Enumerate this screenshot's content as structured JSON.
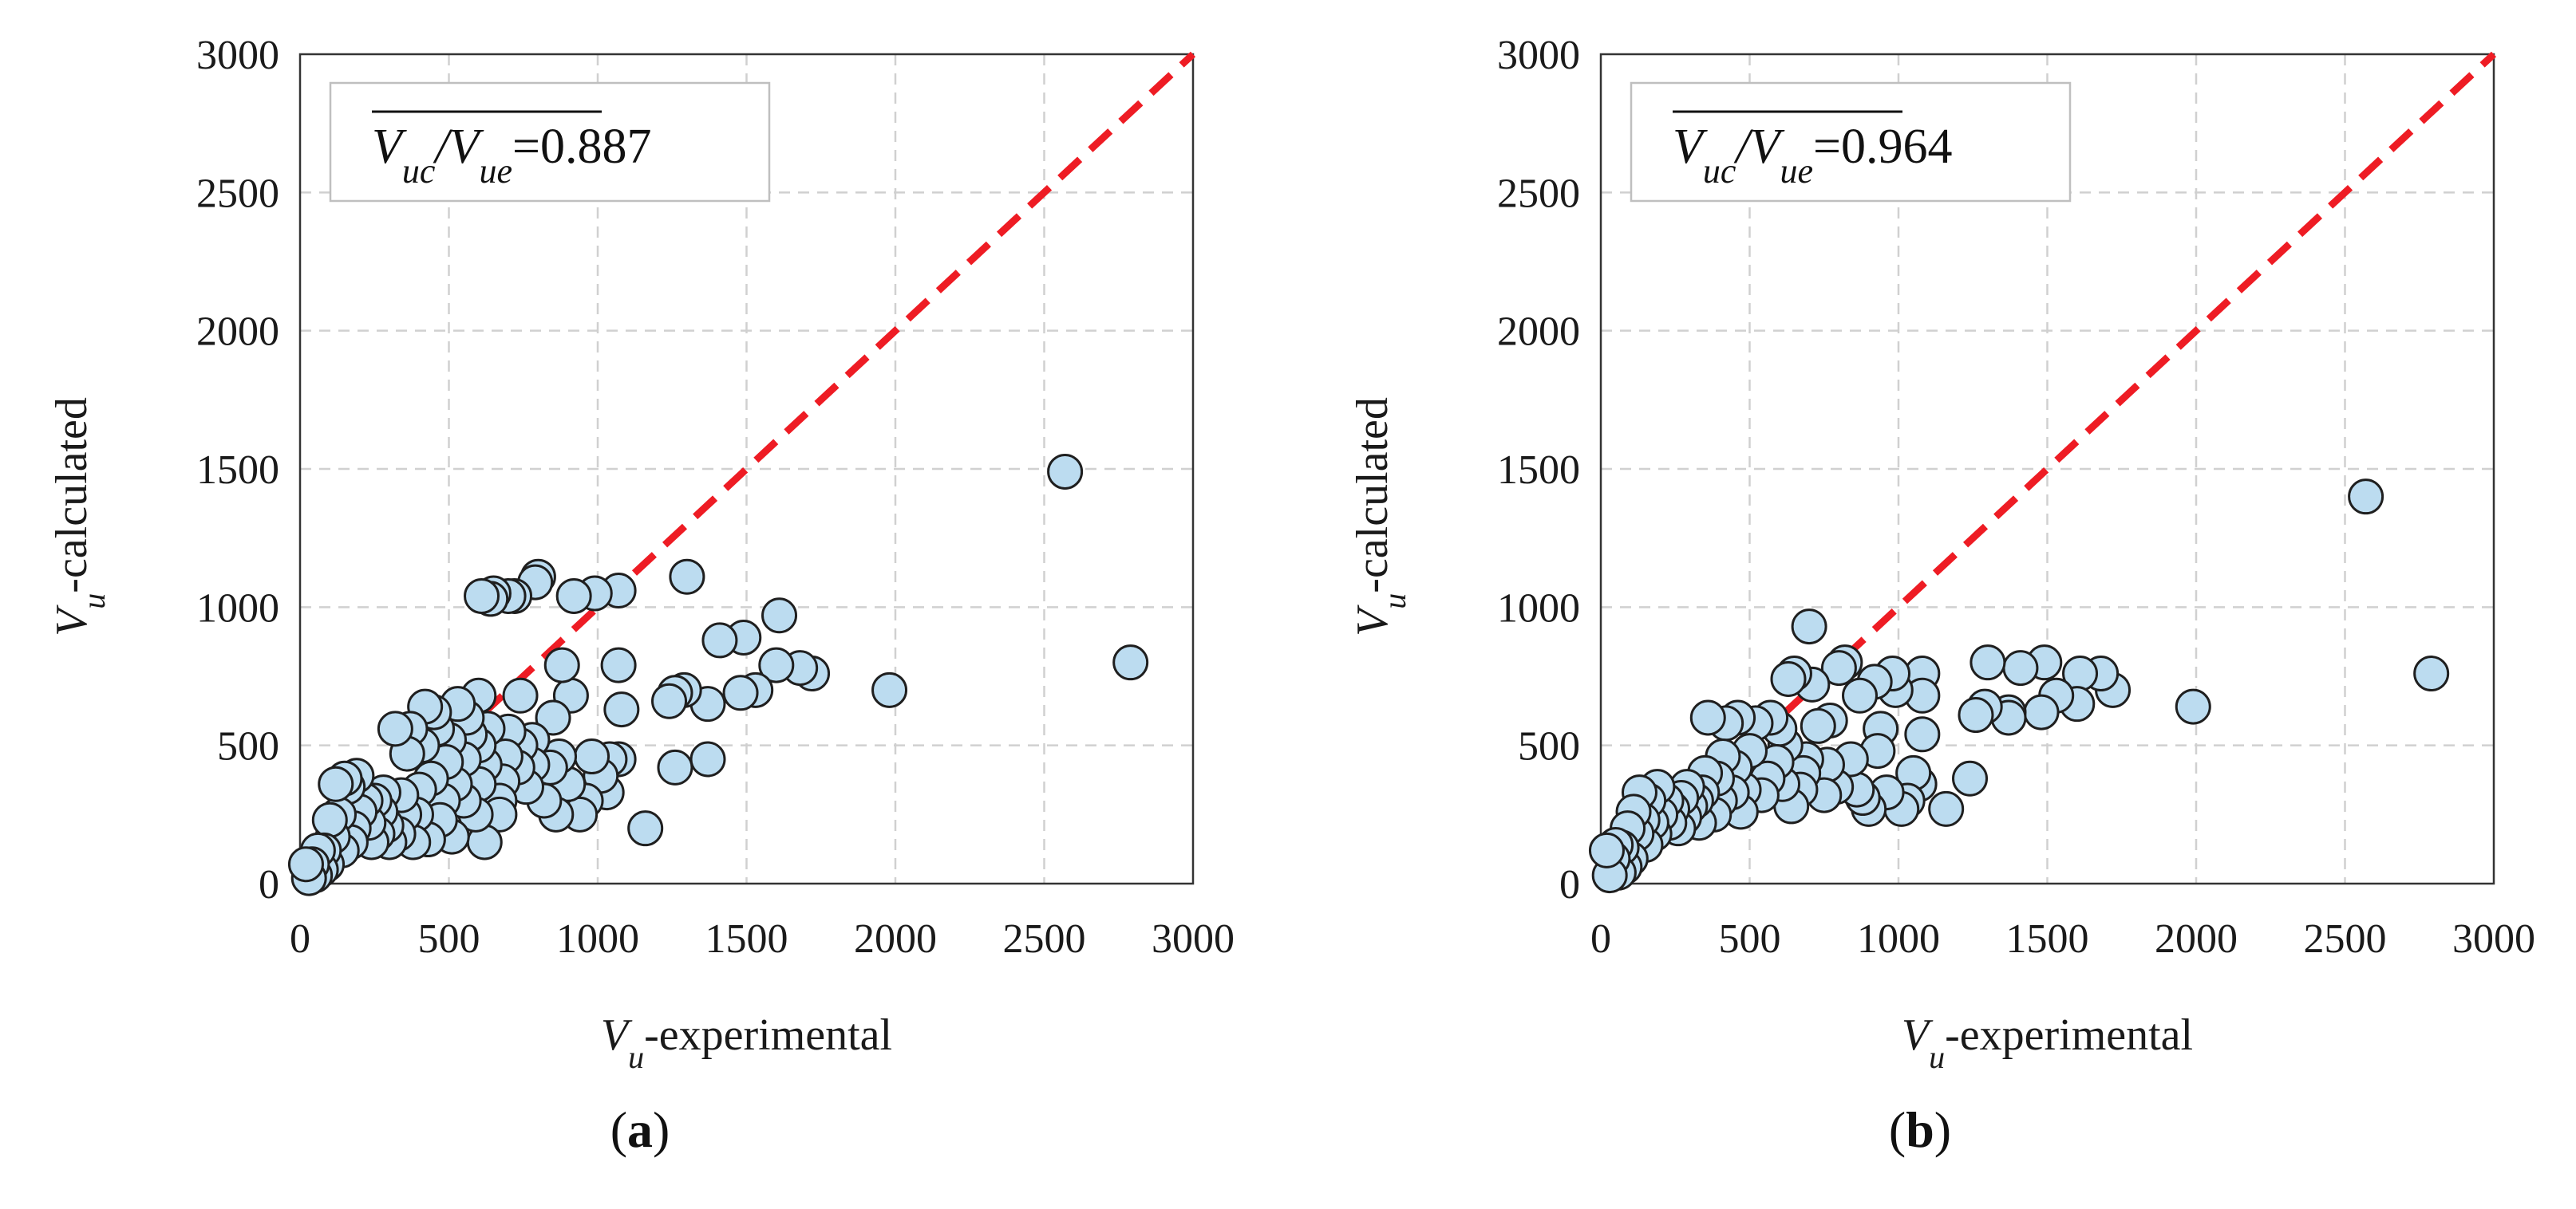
{
  "chart_data": [
    {
      "type": "scatter",
      "panel_label": "a",
      "caption_open": "(",
      "caption_close": ")",
      "legend": {
        "ratio_numerator": "V",
        "ratio_num_sub": "uc",
        "ratio_sep": "/",
        "ratio_denominator": "V",
        "ratio_den_sub": "ue",
        "ratio_value": "=0.887"
      },
      "xlabel": {
        "symbol": "V",
        "sub": "u",
        "text": "-experimental"
      },
      "ylabel": {
        "symbol": "V",
        "sub": "u",
        "text": "-calculated"
      },
      "xlim": [
        0,
        3000
      ],
      "ylim": [
        0,
        3000
      ],
      "xticks": [
        "0",
        "500",
        "1000",
        "1500",
        "2000",
        "2500",
        "3000"
      ],
      "yticks": [
        "0",
        "500",
        "1000",
        "1500",
        "2000",
        "2500",
        "3000"
      ],
      "grid": true,
      "reference_line": "y = x",
      "points": [
        [
          2570,
          1490
        ],
        [
          2790,
          800
        ],
        [
          1980,
          700
        ],
        [
          1720,
          760
        ],
        [
          1680,
          780
        ],
        [
          1610,
          970
        ],
        [
          1600,
          790
        ],
        [
          1530,
          700
        ],
        [
          1490,
          890
        ],
        [
          1480,
          690
        ],
        [
          1410,
          880
        ],
        [
          1370,
          650
        ],
        [
          1370,
          450
        ],
        [
          1300,
          1110
        ],
        [
          1290,
          700
        ],
        [
          1260,
          690
        ],
        [
          1240,
          660
        ],
        [
          1260,
          420
        ],
        [
          1160,
          200
        ],
        [
          1070,
          1060
        ],
        [
          1070,
          790
        ],
        [
          1080,
          630
        ],
        [
          1070,
          450
        ],
        [
          1040,
          450
        ],
        [
          1030,
          330
        ],
        [
          1010,
          390
        ],
        [
          990,
          1050
        ],
        [
          980,
          460
        ],
        [
          960,
          300
        ],
        [
          940,
          250
        ],
        [
          920,
          1040
        ],
        [
          910,
          680
        ],
        [
          900,
          360
        ],
        [
          880,
          790
        ],
        [
          870,
          460
        ],
        [
          860,
          250
        ],
        [
          850,
          600
        ],
        [
          840,
          420
        ],
        [
          820,
          300
        ],
        [
          800,
          1110
        ],
        [
          790,
          1090
        ],
        [
          780,
          520
        ],
        [
          780,
          430
        ],
        [
          760,
          350
        ],
        [
          740,
          680
        ],
        [
          740,
          500
        ],
        [
          730,
          420
        ],
        [
          720,
          1040
        ],
        [
          700,
          1040
        ],
        [
          700,
          550
        ],
        [
          690,
          460
        ],
        [
          680,
          370
        ],
        [
          670,
          300
        ],
        [
          670,
          250
        ],
        [
          650,
          1050
        ],
        [
          640,
          1030
        ],
        [
          630,
          560
        ],
        [
          620,
          430
        ],
        [
          620,
          150
        ],
        [
          610,
          1040
        ],
        [
          600,
          680
        ],
        [
          600,
          500
        ],
        [
          600,
          360
        ],
        [
          590,
          250
        ],
        [
          570,
          540
        ],
        [
          560,
          600
        ],
        [
          550,
          450
        ],
        [
          550,
          300
        ],
        [
          530,
          650
        ],
        [
          520,
          360
        ],
        [
          510,
          170
        ],
        [
          500,
          520
        ],
        [
          490,
          440
        ],
        [
          480,
          300
        ],
        [
          470,
          230
        ],
        [
          460,
          560
        ],
        [
          450,
          620
        ],
        [
          440,
          380
        ],
        [
          430,
          160
        ],
        [
          420,
          640
        ],
        [
          410,
          500
        ],
        [
          400,
          340
        ],
        [
          390,
          250
        ],
        [
          380,
          150
        ],
        [
          370,
          560
        ],
        [
          360,
          470
        ],
        [
          350,
          250
        ],
        [
          340,
          320
        ],
        [
          330,
          180
        ],
        [
          320,
          560
        ],
        [
          300,
          150
        ],
        [
          290,
          210
        ],
        [
          280,
          330
        ],
        [
          270,
          260
        ],
        [
          260,
          180
        ],
        [
          250,
          300
        ],
        [
          240,
          150
        ],
        [
          230,
          220
        ],
        [
          220,
          300
        ],
        [
          200,
          260
        ],
        [
          190,
          390
        ],
        [
          180,
          200
        ],
        [
          170,
          150
        ],
        [
          160,
          350
        ],
        [
          150,
          380
        ],
        [
          140,
          120
        ],
        [
          130,
          250
        ],
        [
          120,
          360
        ],
        [
          110,
          170
        ],
        [
          100,
          230
        ],
        [
          90,
          70
        ],
        [
          80,
          120
        ],
        [
          70,
          50
        ],
        [
          60,
          120
        ],
        [
          50,
          30
        ],
        [
          40,
          70
        ],
        [
          30,
          20
        ],
        [
          20,
          70
        ]
      ]
    },
    {
      "type": "scatter",
      "panel_label": "b",
      "caption_open": "(",
      "caption_close": ")",
      "legend": {
        "ratio_numerator": "V",
        "ratio_num_sub": "uc",
        "ratio_sep": "/",
        "ratio_denominator": "V",
        "ratio_den_sub": "ue",
        "ratio_value": "=0.964"
      },
      "xlabel": {
        "symbol": "V",
        "sub": "u",
        "text": "-experimental"
      },
      "ylabel": {
        "symbol": "V",
        "sub": "u",
        "text": "-calculated"
      },
      "xlim": [
        0,
        3000
      ],
      "ylim": [
        0,
        3000
      ],
      "xticks": [
        "0",
        "500",
        "1000",
        "1500",
        "2000",
        "2500",
        "3000"
      ],
      "yticks": [
        "0",
        "500",
        "1000",
        "1500",
        "2000",
        "2500",
        "3000"
      ],
      "grid": true,
      "reference_line": "y = x",
      "points": [
        [
          2570,
          1400
        ],
        [
          2790,
          760
        ],
        [
          1990,
          640
        ],
        [
          1720,
          700
        ],
        [
          1680,
          760
        ],
        [
          1610,
          760
        ],
        [
          1600,
          650
        ],
        [
          1530,
          680
        ],
        [
          1490,
          800
        ],
        [
          1480,
          620
        ],
        [
          1410,
          780
        ],
        [
          1370,
          620
        ],
        [
          1370,
          600
        ],
        [
          1300,
          800
        ],
        [
          1290,
          640
        ],
        [
          1260,
          610
        ],
        [
          1240,
          380
        ],
        [
          1160,
          270
        ],
        [
          1080,
          760
        ],
        [
          1080,
          680
        ],
        [
          1080,
          540
        ],
        [
          1070,
          360
        ],
        [
          1050,
          400
        ],
        [
          1030,
          300
        ],
        [
          1010,
          270
        ],
        [
          990,
          700
        ],
        [
          980,
          760
        ],
        [
          960,
          330
        ],
        [
          940,
          560
        ],
        [
          930,
          480
        ],
        [
          920,
          730
        ],
        [
          900,
          270
        ],
        [
          880,
          310
        ],
        [
          870,
          680
        ],
        [
          860,
          340
        ],
        [
          840,
          450
        ],
        [
          820,
          800
        ],
        [
          800,
          780
        ],
        [
          790,
          350
        ],
        [
          770,
          590
        ],
        [
          760,
          430
        ],
        [
          750,
          320
        ],
        [
          730,
          570
        ],
        [
          710,
          720
        ],
        [
          700,
          930
        ],
        [
          690,
          450
        ],
        [
          680,
          400
        ],
        [
          670,
          340
        ],
        [
          650,
          760
        ],
        [
          640,
          280
        ],
        [
          630,
          740
        ],
        [
          620,
          500
        ],
        [
          610,
          360
        ],
        [
          600,
          560
        ],
        [
          590,
          440
        ],
        [
          570,
          600
        ],
        [
          560,
          380
        ],
        [
          540,
          320
        ],
        [
          520,
          580
        ],
        [
          500,
          480
        ],
        [
          480,
          340
        ],
        [
          470,
          260
        ],
        [
          460,
          600
        ],
        [
          450,
          420
        ],
        [
          440,
          330
        ],
        [
          420,
          580
        ],
        [
          410,
          460
        ],
        [
          400,
          300
        ],
        [
          390,
          380
        ],
        [
          380,
          250
        ],
        [
          360,
          600
        ],
        [
          350,
          400
        ],
        [
          340,
          330
        ],
        [
          330,
          220
        ],
        [
          320,
          300
        ],
        [
          300,
          280
        ],
        [
          290,
          350
        ],
        [
          280,
          240
        ],
        [
          270,
          310
        ],
        [
          260,
          200
        ],
        [
          240,
          270
        ],
        [
          230,
          220
        ],
        [
          220,
          300
        ],
        [
          200,
          250
        ],
        [
          190,
          350
        ],
        [
          180,
          180
        ],
        [
          170,
          220
        ],
        [
          160,
          300
        ],
        [
          150,
          140
        ],
        [
          140,
          230
        ],
        [
          130,
          330
        ],
        [
          120,
          180
        ],
        [
          110,
          260
        ],
        [
          100,
          90
        ],
        [
          90,
          200
        ],
        [
          80,
          60
        ],
        [
          70,
          130
        ],
        [
          60,
          40
        ],
        [
          50,
          140
        ],
        [
          40,
          90
        ],
        [
          30,
          30
        ],
        [
          20,
          120
        ]
      ]
    }
  ]
}
